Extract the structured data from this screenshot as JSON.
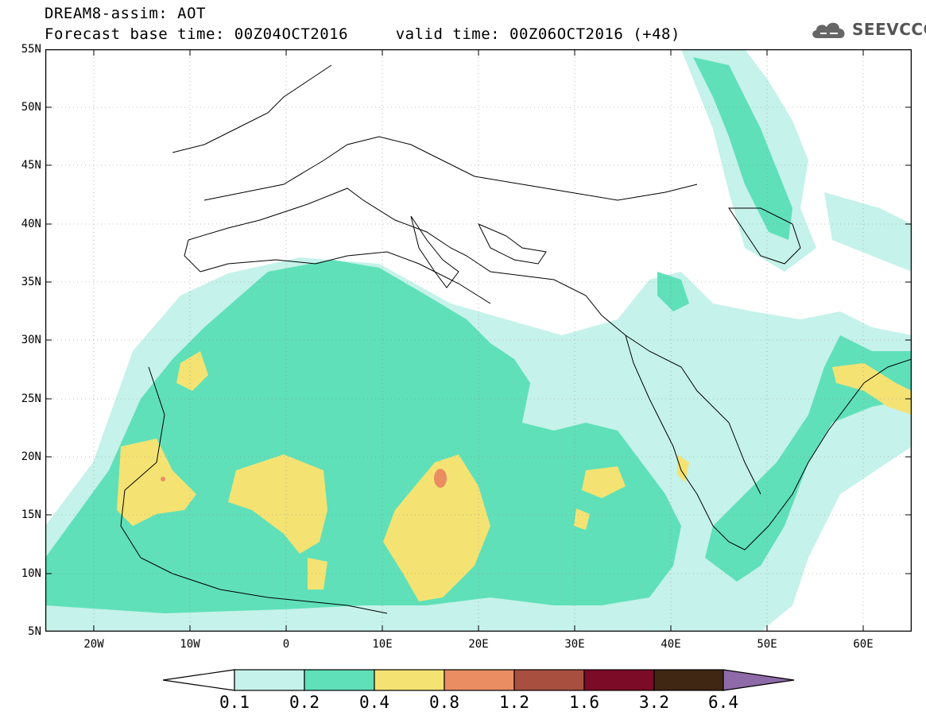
{
  "header": {
    "title_line1": "DREAM8-assim: AOT",
    "title_line2": "Forecast base time: 00Z04OCT2016     valid time: 00Z06OCT2016 (+48)",
    "logo_text": "SEEVCCC"
  },
  "map": {
    "lat_labels": [
      "55N",
      "50N",
      "45N",
      "40N",
      "35N",
      "30N",
      "25N",
      "20N",
      "15N",
      "10N",
      "5N"
    ],
    "lon_labels": [
      "20W",
      "10W",
      "0",
      "10E",
      "20E",
      "30E",
      "40E",
      "50E",
      "60E"
    ],
    "extent": {
      "lon_min": -25,
      "lon_max": 65,
      "lat_min": 5,
      "lat_max": 55
    },
    "variable": "AOT"
  },
  "legend": {
    "labels": [
      "0.1",
      "0.2",
      "0.4",
      "0.8",
      "1.2",
      "1.6",
      "3.2",
      "6.4"
    ],
    "colors": [
      "#ffffff",
      "#c5f2ea",
      "#5fe0b9",
      "#f4e373",
      "#ea8d62",
      "#a94f3f",
      "#7c0b27",
      "#3f2714",
      "#8e6aa8"
    ]
  }
}
